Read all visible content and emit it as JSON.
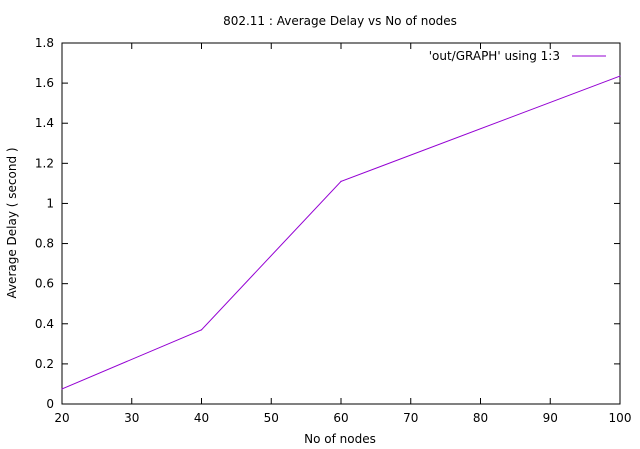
{
  "chart_data": {
    "type": "line",
    "title": "802.11 : Average Delay vs No of nodes",
    "xlabel": "No of nodes",
    "ylabel": "Average Delay ( second )",
    "xlim": [
      20,
      100
    ],
    "ylim": [
      0,
      1.8
    ],
    "xticks": [
      "20",
      "30",
      "40",
      "50",
      "60",
      "70",
      "80",
      "90",
      "100"
    ],
    "yticks": [
      "0",
      "0.2",
      "0.4",
      "0.6",
      "0.8",
      "1",
      "1.2",
      "1.4",
      "1.6",
      "1.8"
    ],
    "grid": false,
    "legend_position": "top-right",
    "series": [
      {
        "name": "'out/GRAPH' using 1:3",
        "color": "#9400d3",
        "x": [
          20,
          40,
          60,
          100
        ],
        "y": [
          0.075,
          0.37,
          1.11,
          1.635
        ]
      }
    ]
  }
}
